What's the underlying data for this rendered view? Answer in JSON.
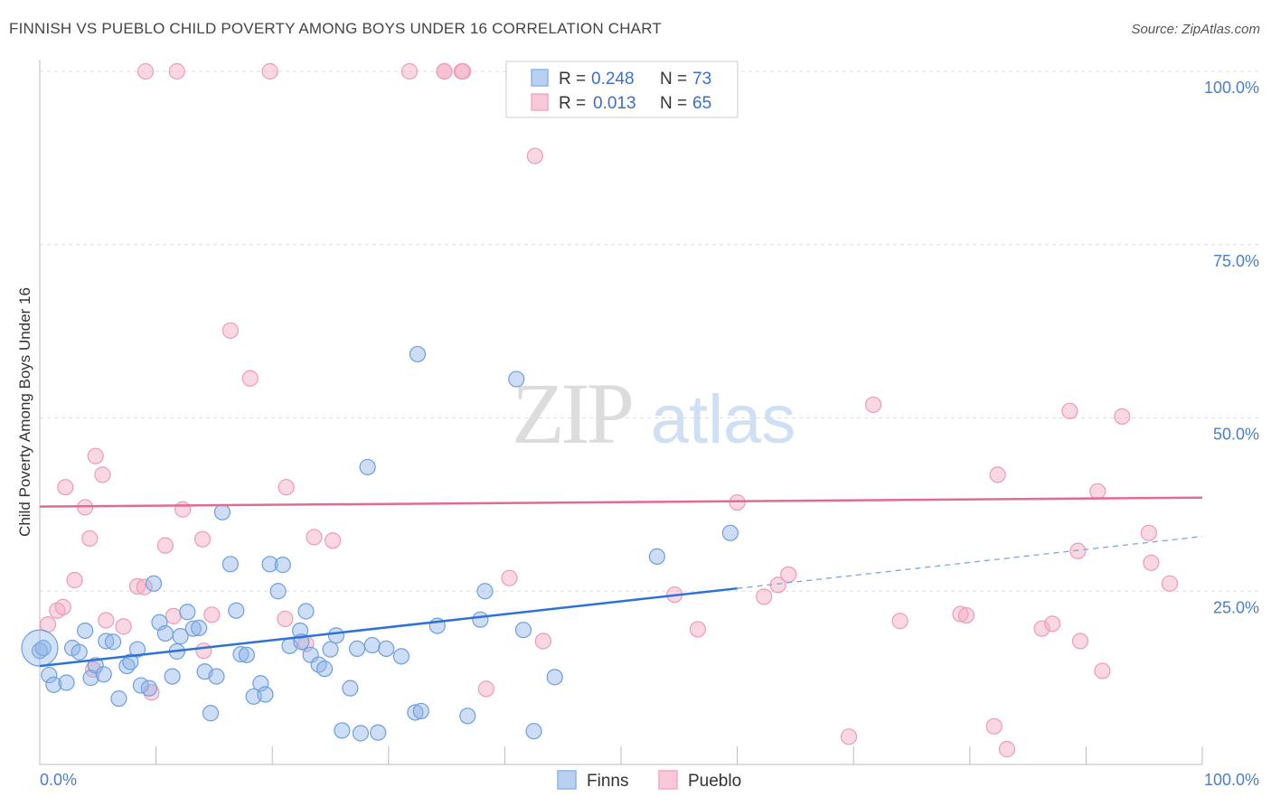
{
  "title": "FINNISH VS PUEBLO CHILD POVERTY AMONG BOYS UNDER 16 CORRELATION CHART",
  "source": "Source: ZipAtlas.com",
  "watermark": {
    "zip": "ZIP",
    "atlas": "atlas"
  },
  "legend_top": [
    {
      "r_label": "R =",
      "r_value": "0.248",
      "n_label": "N =",
      "n_value": "73"
    },
    {
      "r_label": "R =",
      "r_value": "0.013",
      "n_label": "N =",
      "n_value": "65"
    }
  ],
  "chart_data": {
    "type": "scatter",
    "title": "FINNISH VS PUEBLO CHILD POVERTY AMONG BOYS UNDER 16 CORRELATION CHART",
    "xlabel": "",
    "ylabel": "Child Poverty Among Boys Under 16",
    "xlim": [
      0,
      100
    ],
    "ylim": [
      0,
      100
    ],
    "x_tick_labels": [
      "0.0%",
      "100.0%"
    ],
    "y_tick_labels": [
      "25.0%",
      "50.0%",
      "75.0%",
      "100.0%"
    ],
    "y_ticks": [
      25,
      50,
      75,
      100
    ],
    "grid": true,
    "legend": "bottom-center",
    "series": [
      {
        "name": "Finns",
        "color": "#8db4e8",
        "line_color": "#2f72d6",
        "R": 0.248,
        "N": 73,
        "trend": {
          "x0": 0,
          "y0": 14.2,
          "x1": 60,
          "y1": 25.4,
          "dashed_to_x": 100,
          "dashed_to_y": 32.9
        },
        "points": [
          [
            0.0,
            16.4
          ],
          [
            0.8,
            12.9
          ],
          [
            1.2,
            11.5
          ],
          [
            2.3,
            11.8
          ],
          [
            2.8,
            16.8
          ],
          [
            3.4,
            16.2
          ],
          [
            3.9,
            19.3
          ],
          [
            4.4,
            12.5
          ],
          [
            4.8,
            14.3
          ],
          [
            5.5,
            13.0
          ],
          [
            5.7,
            17.8
          ],
          [
            6.3,
            17.7
          ],
          [
            6.8,
            9.5
          ],
          [
            7.5,
            14.2
          ],
          [
            7.8,
            14.8
          ],
          [
            8.4,
            16.6
          ],
          [
            8.7,
            11.4
          ],
          [
            9.4,
            11.0
          ],
          [
            9.8,
            26.1
          ],
          [
            10.3,
            20.5
          ],
          [
            10.8,
            18.9
          ],
          [
            11.4,
            12.7
          ],
          [
            11.8,
            16.3
          ],
          [
            12.1,
            18.5
          ],
          [
            12.7,
            22.0
          ],
          [
            13.2,
            19.6
          ],
          [
            13.7,
            19.7
          ],
          [
            14.2,
            13.4
          ],
          [
            14.7,
            7.4
          ],
          [
            15.2,
            12.7
          ],
          [
            15.7,
            36.4
          ],
          [
            16.4,
            28.9
          ],
          [
            16.9,
            22.2
          ],
          [
            17.3,
            15.9
          ],
          [
            17.8,
            15.8
          ],
          [
            18.4,
            9.8
          ],
          [
            19.0,
            11.7
          ],
          [
            19.4,
            10.1
          ],
          [
            19.8,
            28.9
          ],
          [
            20.5,
            25.0
          ],
          [
            20.9,
            28.8
          ],
          [
            21.5,
            17.1
          ],
          [
            22.4,
            19.3
          ],
          [
            22.5,
            17.7
          ],
          [
            22.9,
            22.1
          ],
          [
            23.3,
            15.8
          ],
          [
            24.0,
            14.4
          ],
          [
            24.5,
            13.8
          ],
          [
            25.0,
            16.6
          ],
          [
            25.5,
            18.6
          ],
          [
            26.0,
            4.9
          ],
          [
            26.7,
            11.0
          ],
          [
            27.3,
            16.7
          ],
          [
            27.6,
            4.5
          ],
          [
            28.2,
            42.9
          ],
          [
            28.6,
            17.2
          ],
          [
            29.1,
            4.6
          ],
          [
            29.8,
            16.7
          ],
          [
            31.1,
            15.6
          ],
          [
            32.3,
            7.5
          ],
          [
            32.5,
            59.2
          ],
          [
            32.8,
            7.7
          ],
          [
            34.2,
            20.0
          ],
          [
            36.8,
            7.0
          ],
          [
            37.9,
            20.9
          ],
          [
            38.3,
            25.0
          ],
          [
            41.0,
            55.6
          ],
          [
            41.6,
            19.4
          ],
          [
            42.5,
            4.8
          ],
          [
            44.3,
            12.6
          ],
          [
            53.1,
            30.0
          ],
          [
            59.4,
            33.4
          ],
          [
            0.3,
            16.8
          ]
        ]
      },
      {
        "name": "Pueblo",
        "color": "#f4a9c1",
        "line_color": "#e06c93",
        "R": 0.013,
        "N": 65,
        "trend": {
          "x0": 0,
          "y0": 37.2,
          "x1": 100,
          "y1": 38.5
        },
        "points": [
          [
            0.7,
            20.2
          ],
          [
            1.5,
            22.2
          ],
          [
            2.0,
            22.7
          ],
          [
            2.2,
            40.0
          ],
          [
            3.0,
            26.6
          ],
          [
            3.9,
            37.1
          ],
          [
            4.3,
            32.6
          ],
          [
            4.6,
            13.7
          ],
          [
            4.8,
            44.5
          ],
          [
            5.4,
            41.8
          ],
          [
            5.7,
            20.8
          ],
          [
            7.2,
            19.9
          ],
          [
            8.4,
            25.7
          ],
          [
            9.0,
            25.6
          ],
          [
            9.6,
            10.4
          ],
          [
            10.8,
            31.6
          ],
          [
            11.5,
            21.4
          ],
          [
            12.3,
            36.8
          ],
          [
            14.0,
            32.5
          ],
          [
            14.1,
            16.4
          ],
          [
            14.8,
            21.6
          ],
          [
            16.4,
            62.6
          ],
          [
            18.1,
            55.7
          ],
          [
            21.1,
            21.0
          ],
          [
            22.9,
            17.4
          ],
          [
            23.6,
            32.8
          ],
          [
            25.2,
            32.3
          ],
          [
            34.8,
            100
          ],
          [
            36.3,
            100
          ],
          [
            34.8,
            100
          ],
          [
            38.4,
            10.9
          ],
          [
            40.4,
            26.9
          ],
          [
            43.3,
            17.8
          ],
          [
            21.2,
            40
          ],
          [
            54.6,
            24.5
          ],
          [
            56.6,
            19.5
          ],
          [
            60.0,
            37.8
          ],
          [
            62.3,
            24.2
          ],
          [
            63.5,
            25.9
          ],
          [
            64.4,
            27.4
          ],
          [
            69.6,
            4.0
          ],
          [
            71.7,
            51.9
          ],
          [
            74.0,
            20.7
          ],
          [
            79.2,
            21.7
          ],
          [
            79.7,
            21.5
          ],
          [
            82.1,
            5.5
          ],
          [
            82.4,
            41.8
          ],
          [
            83.2,
            2.2
          ],
          [
            86.2,
            19.6
          ],
          [
            87.1,
            20.3
          ],
          [
            88.6,
            51.0
          ],
          [
            89.3,
            30.8
          ],
          [
            89.5,
            17.8
          ],
          [
            91.0,
            39.4
          ],
          [
            91.4,
            13.5
          ],
          [
            93.1,
            50.2
          ],
          [
            95.4,
            33.4
          ],
          [
            95.6,
            29.1
          ],
          [
            97.2,
            26.1
          ],
          [
            9.1,
            100
          ],
          [
            11.8,
            100
          ],
          [
            19.8,
            100
          ],
          [
            31.8,
            100
          ],
          [
            36.4,
            100
          ],
          [
            42.6,
            87.8
          ]
        ]
      }
    ]
  },
  "legend_bottom": {
    "finns": "Finns",
    "pueblo": "Pueblo"
  },
  "colors": {
    "blue": "#8db4e8",
    "pink": "#f4a9c1",
    "blue_line": "#2f72d6",
    "pink_line": "#e06c93",
    "tick_text": "#4a7fc8"
  }
}
